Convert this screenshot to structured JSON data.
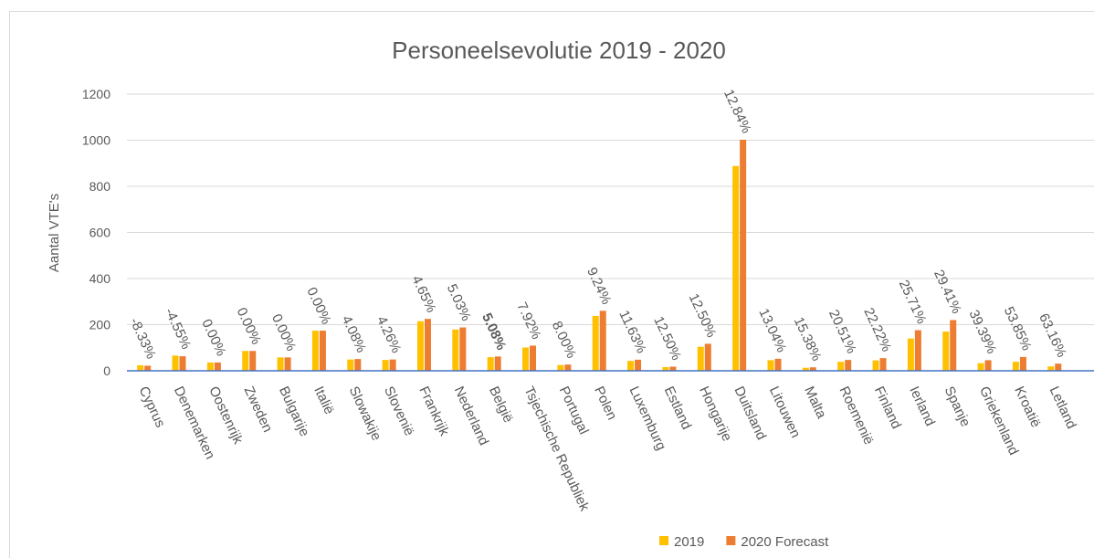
{
  "chart_data": {
    "type": "bar",
    "title": "Personeelsevolutie 2019 - 2020",
    "y_label": "Aantal VTE's",
    "categories": [
      "Cyprus",
      "Denemarken",
      "Oostenrijk",
      "Zweden",
      "Bulgarije",
      "Italië",
      "Slowakije",
      "Slovenië",
      "Frankrijk",
      "Nederland",
      "België",
      "Tsjechische Republiek",
      "Portugal",
      "Polen",
      "Luxemburg",
      "Estland",
      "Hongarije",
      "Duitsland",
      "Litouwen",
      "Malta",
      "Roemenië",
      "Finland",
      "Ierland",
      "Spanje",
      "Griekenland",
      "Kroatië",
      "Letland"
    ],
    "series": [
      {
        "name": "2019",
        "color": "#ffc000",
        "values": [
          24,
          66,
          36,
          86,
          58,
          174,
          49,
          47,
          215,
          179,
          59,
          101,
          25,
          238,
          43,
          16,
          104,
          888,
          46,
          13,
          39,
          45,
          140,
          170,
          33,
          39,
          19
        ]
      },
      {
        "name": "2020 Forecast",
        "color": "#ed7d31",
        "values": [
          22,
          63,
          36,
          86,
          58,
          174,
          51,
          49,
          225,
          188,
          62,
          109,
          27,
          260,
          48,
          18,
          117,
          1002,
          52,
          15,
          47,
          55,
          176,
          220,
          46,
          60,
          31
        ]
      }
    ],
    "data_labels": [
      "-8.33%",
      "-4.55%",
      "0.00%",
      "0.00%",
      "0.00%",
      "0.00%",
      "4.08%",
      "4.26%",
      "4.65%",
      "5.03%",
      "5.08%",
      "7.92%",
      "8.00%",
      "9.24%",
      "11.63%",
      "12.50%",
      "12.50%",
      "12.84%",
      "13.04%",
      "15.38%",
      "20.51%",
      "22.22%",
      "25.71%",
      "29.41%",
      "39.39%",
      "53.85%",
      "63.16%"
    ],
    "bold_category": "België",
    "ylim": [
      0,
      1200
    ],
    "yticks": [
      0,
      200,
      400,
      600,
      800,
      1000,
      1200
    ],
    "grid": true,
    "legend": "bottom"
  }
}
